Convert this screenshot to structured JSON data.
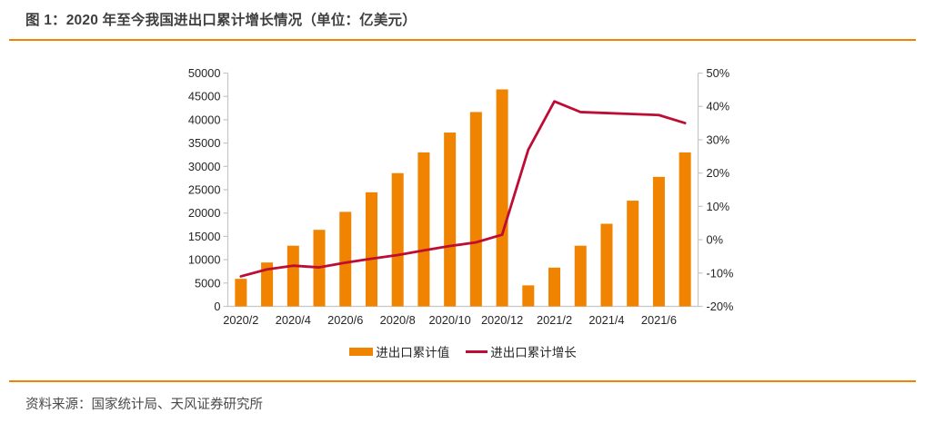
{
  "header": {
    "title": "图 1：2020 年至今我国进出口累计增长情况（单位：亿美元）"
  },
  "footer": {
    "source": "资料来源：国家统计局、天风证券研究所"
  },
  "colors": {
    "bar": "#F08300",
    "line": "#BE0D34",
    "rule": "#F08300",
    "axis": "#C6C6C6",
    "text": "#262626",
    "title_text": "#3F3F3F",
    "footer_text": "#4A4A4A"
  },
  "chart_data": {
    "type": "bar",
    "subtype": "bar+line combo, dual axis",
    "title": "图 1：2020 年至今我国进出口累计增长情况（单位：亿美元）",
    "categories": [
      "2020/2",
      "2020/3",
      "2020/4",
      "2020/5",
      "2020/6",
      "2020/7",
      "2020/8",
      "2020/9",
      "2020/10",
      "2020/11",
      "2020/12",
      "2021/1",
      "2021/2",
      "2021/3",
      "2021/4",
      "2021/5",
      "2021/6",
      "2021/7"
    ],
    "x_tick_labels": [
      "2020/2",
      "2020/4",
      "2020/6",
      "2020/8",
      "2020/10",
      "2020/12",
      "2021/2",
      "2021/4",
      "2021/6"
    ],
    "series": [
      {
        "name": "进出口累计值",
        "type": "bar",
        "axis": "left",
        "values": [
          5900,
          9400,
          13000,
          16400,
          20250,
          24450,
          28550,
          33000,
          37250,
          41650,
          46500,
          4500,
          8300,
          13000,
          17700,
          22650,
          27750,
          33000
        ]
      },
      {
        "name": "进出口累计增长",
        "type": "line",
        "axis": "right",
        "values": [
          -11,
          -8.9,
          -7.8,
          -8.3,
          -6.9,
          -5.7,
          -4.6,
          -3.2,
          -1.9,
          -0.8,
          1.5,
          27,
          41.5,
          38.3,
          38,
          37.7,
          37.4,
          35
        ]
      }
    ],
    "left_axis": {
      "min": 0,
      "max": 50000,
      "step": 5000,
      "tick_labels": [
        "0",
        "5000",
        "10000",
        "15000",
        "20000",
        "25000",
        "30000",
        "35000",
        "40000",
        "45000",
        "50000"
      ]
    },
    "right_axis": {
      "min": -20,
      "max": 50,
      "step": 10,
      "tick_labels": [
        "-20%",
        "-10%",
        "0%",
        "10%",
        "20%",
        "30%",
        "40%",
        "50%"
      ]
    },
    "legend_position": "bottom",
    "grid": "off",
    "xlabel": "",
    "ylabel_left": "亿美元",
    "ylabel_right": "%"
  }
}
